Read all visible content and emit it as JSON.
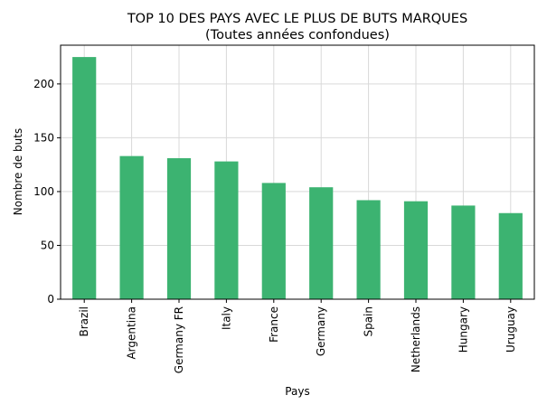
{
  "chart_data": {
    "type": "bar",
    "title": "TOP 10 DES PAYS AVEC LE PLUS DE BUTS MARQUES",
    "subtitle": "(Toutes années confondues)",
    "xlabel": "Pays",
    "ylabel": "Nombre de buts",
    "categories": [
      "Brazil",
      "Argentina",
      "Germany FR",
      "Italy",
      "France",
      "Germany",
      "Spain",
      "Netherlands",
      "Hungary",
      "Uruguay"
    ],
    "values": [
      225,
      133,
      131,
      128,
      108,
      104,
      92,
      91,
      87,
      80
    ],
    "ylim": [
      0,
      236
    ],
    "yticks": [
      0,
      50,
      100,
      150,
      200
    ],
    "grid": true,
    "bar_color": "#3cb371",
    "grid_color": "#d9d9d9"
  }
}
